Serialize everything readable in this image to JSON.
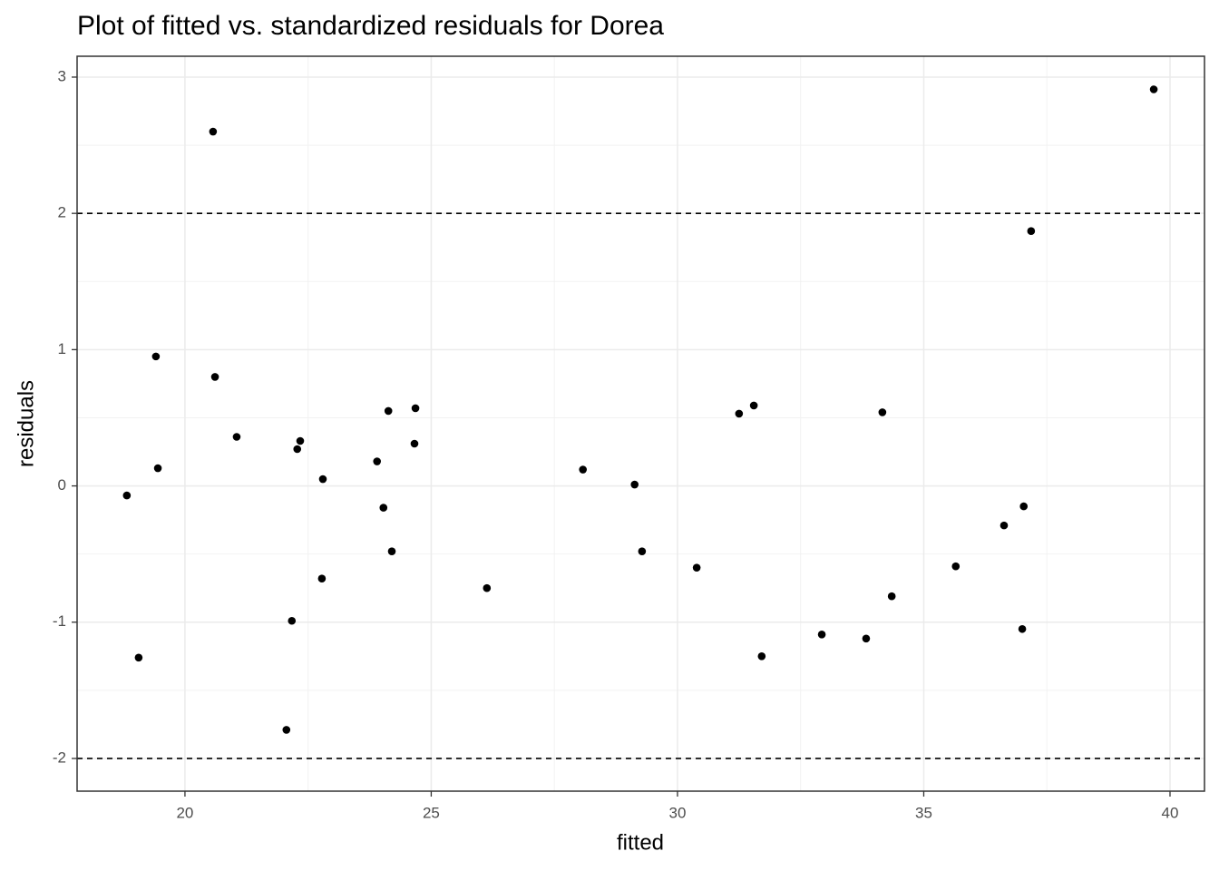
{
  "chart_data": {
    "type": "scatter",
    "title": "Plot of fitted vs. standardized residuals for Dorea",
    "x_label": "fitted",
    "y_label": "residuals",
    "x": [
      18.82,
      19.06,
      19.41,
      19.45,
      20.57,
      20.61,
      21.05,
      22.06,
      22.17,
      22.28,
      22.34,
      22.78,
      22.8,
      23.9,
      24.03,
      24.13,
      24.2,
      24.66,
      24.68,
      26.13,
      28.08,
      29.13,
      29.28,
      30.39,
      31.25,
      31.55,
      31.71,
      32.93,
      33.83,
      34.16,
      34.35,
      35.65,
      36.63,
      37.0,
      37.03,
      37.18,
      39.67
    ],
    "values": [
      -0.07,
      -1.26,
      0.95,
      0.13,
      2.6,
      0.8,
      0.36,
      -1.79,
      -0.99,
      0.27,
      0.33,
      -0.68,
      0.05,
      0.18,
      -0.16,
      0.55,
      -0.48,
      0.31,
      0.57,
      -0.75,
      0.12,
      0.01,
      -0.48,
      -0.6,
      0.53,
      0.59,
      -1.25,
      -1.09,
      -1.12,
      0.54,
      -0.81,
      -0.59,
      -0.29,
      -1.05,
      -0.15,
      1.87,
      2.91
    ],
    "color": "#000000",
    "xlim": [
      17.81,
      40.7
    ],
    "xticks": [
      20,
      25,
      30,
      35,
      40
    ],
    "ylim": [
      -2.24,
      3.153
    ],
    "yticks": [
      -2,
      -1,
      0,
      1,
      2,
      3
    ],
    "reference_lines": [
      2,
      -2
    ],
    "grid": true
  }
}
